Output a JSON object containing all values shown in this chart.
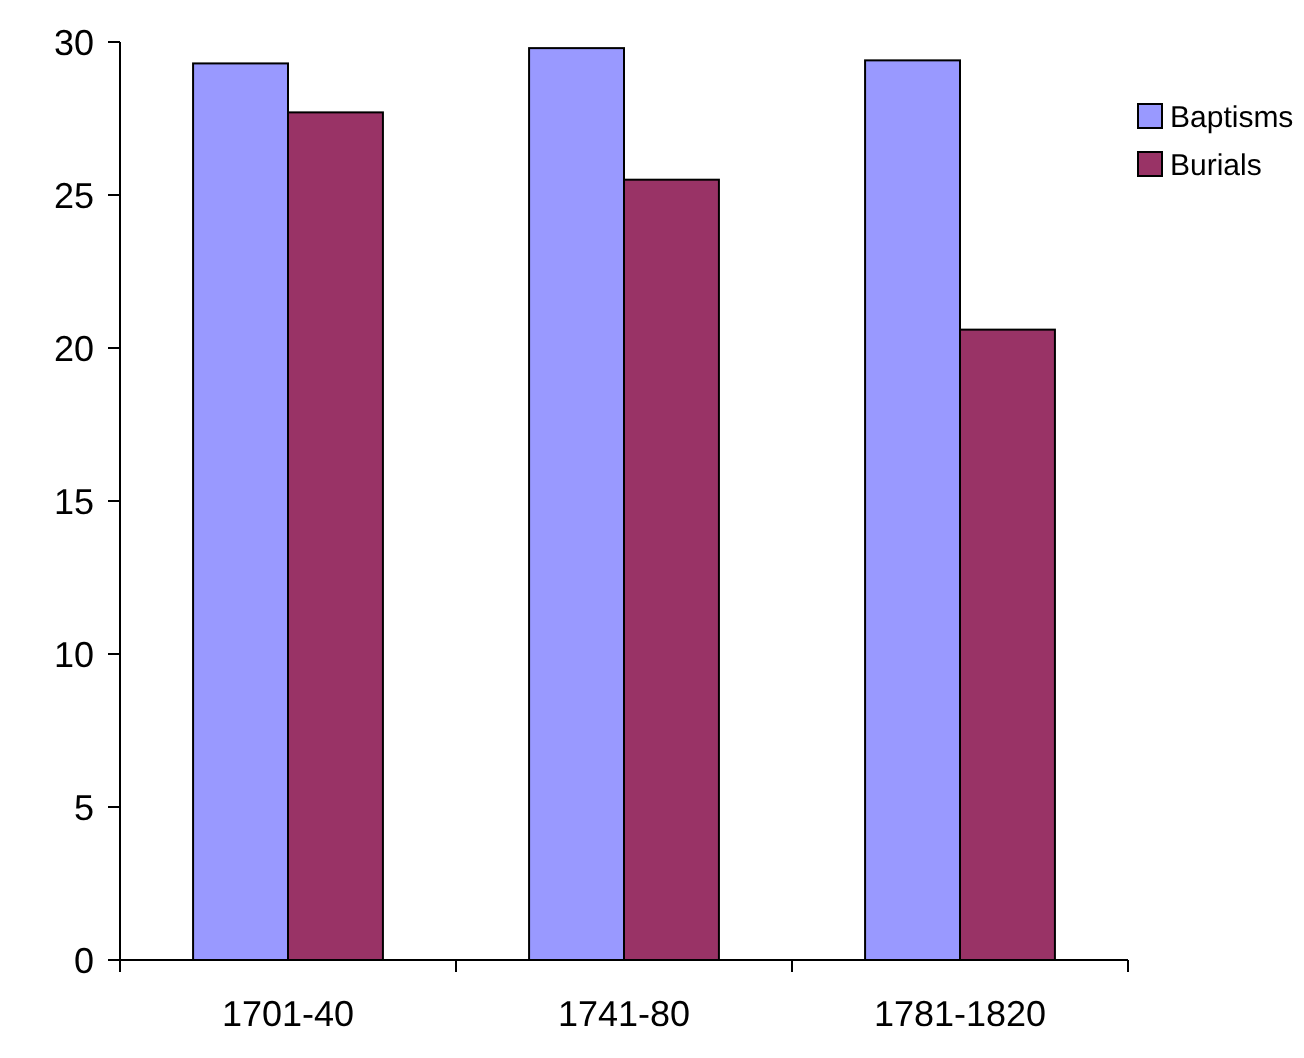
{
  "chart_data": {
    "type": "bar",
    "categories": [
      "1701-40",
      "1741-80",
      "1781-1820"
    ],
    "series": [
      {
        "name": "Baptisms",
        "color": "#9999ff",
        "values": [
          29.3,
          29.8,
          29.4
        ]
      },
      {
        "name": "Burials",
        "color": "#993366",
        "values": [
          27.7,
          25.5,
          20.6
        ]
      }
    ],
    "ylim": [
      0,
      30
    ],
    "yticks": [
      0,
      5,
      10,
      15,
      20,
      25,
      30
    ],
    "grid": false,
    "legend": "top right"
  }
}
